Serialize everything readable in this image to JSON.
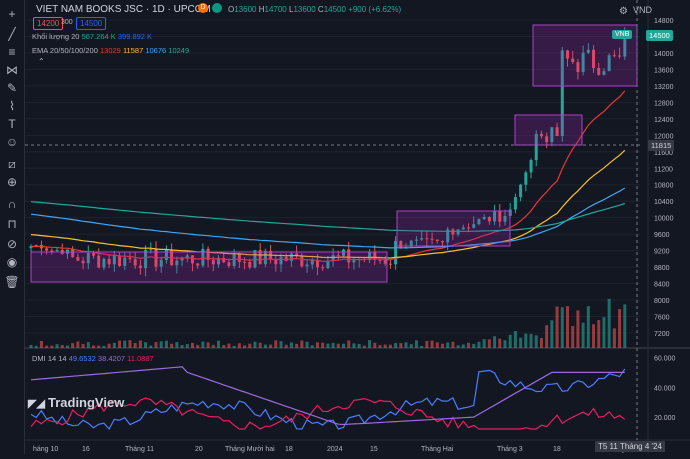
{
  "header": {
    "symbol_title": "VIET NAM BOOKS JSC · 1D · UPCOM",
    "badge_d": "D",
    "ohlc": {
      "o_label": "O",
      "o": "13600",
      "h_label": "H",
      "h": "14700",
      "l_label": "L",
      "l": "13600",
      "c_label": "C",
      "c": "14500",
      "change": "+900 (+6.62%)"
    },
    "bid": "14200",
    "spread": "300",
    "ask": "14500"
  },
  "volume_legend": {
    "label": "Khối lượng 20",
    "v1": "567.264 K",
    "v2": "399.892 K"
  },
  "ema_legend": {
    "label": "EMA 20/50/100/200",
    "e20": "13029",
    "e50": "11587",
    "e100": "10676",
    "e200": "10249"
  },
  "dmi_legend": {
    "label": "DMI 14 14",
    "v1": "49.6532",
    "v2": "38.4207",
    "v3": "11.0887"
  },
  "currency": "VND",
  "last_price_tag": {
    "ticker": "VNB",
    "price": "14500"
  },
  "crosshair_price": "11815",
  "watermark": "TradingView",
  "price_axis": [
    "14800",
    "14400",
    "14000",
    "13600",
    "13200",
    "12800",
    "12400",
    "12000",
    "11600",
    "11200",
    "10800",
    "10400",
    "10000",
    "9600",
    "9200",
    "8800",
    "8400",
    "8000",
    "7600",
    "7200"
  ],
  "dmi_axis": [
    "60.000",
    "40.000",
    "20.000"
  ],
  "time_axis": [
    "háng 10",
    "16",
    "Tháng 11",
    "20",
    "Tháng Mười hai",
    "18",
    "2024",
    "15",
    "Tháng Hai",
    "Tháng 3",
    "18",
    "Tháng 4"
  ],
  "crosshair_date": "T5 11 Tháng 4 '24",
  "colors": {
    "bg": "#131722",
    "up": "#26a69a",
    "down": "#ef5350",
    "ema20": "#e53935",
    "ema50": "#fbc02d",
    "ema100": "#42a5f5",
    "ema200": "#26a69a",
    "box": "#9c27b0",
    "dmi_plus": "#4c7dff",
    "dmi_minus": "#e91e63",
    "adx": "#9c6ade"
  },
  "tools": [
    "crosshair-icon",
    "trendline-icon",
    "fib-icon",
    "pattern-icon",
    "brush-icon",
    "text-icon",
    "emoji-icon",
    "ruler-icon",
    "zoom-icon",
    "magnet-icon",
    "lock-icon",
    "hide-icon",
    "eye-icon",
    "trash-icon"
  ]
}
